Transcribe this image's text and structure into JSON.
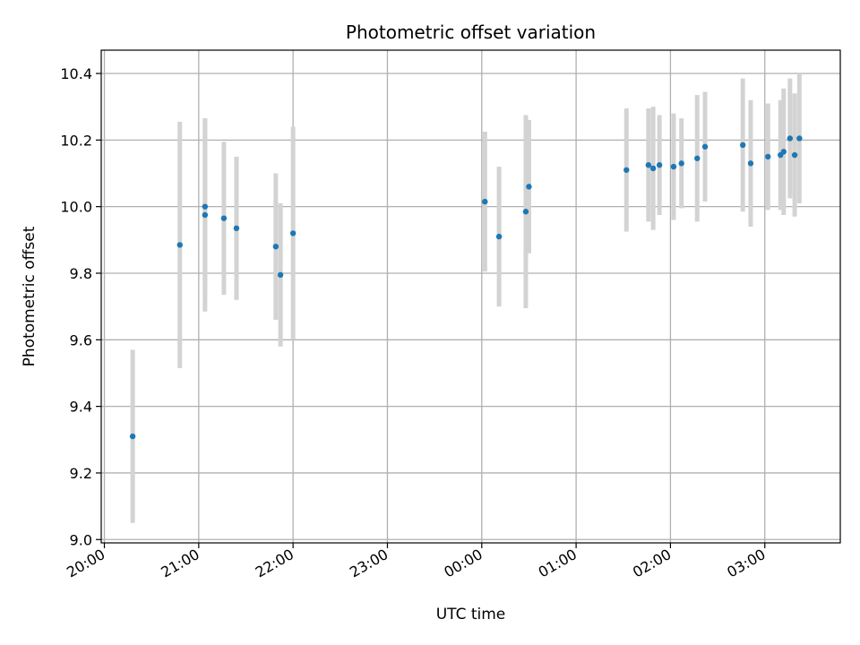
{
  "chart_data": {
    "type": "scatter",
    "title": "Photometric offset variation",
    "xlabel": "UTC time",
    "ylabel": "Photometric offset",
    "xlim": [
      "19:58",
      "27:48"
    ],
    "ylim": [
      8.99,
      10.47
    ],
    "grid": true,
    "x_ticks": [
      "20:00",
      "21:00",
      "22:00",
      "23:00",
      "00:00",
      "01:00",
      "02:00",
      "03:00"
    ],
    "y_ticks": [
      "9.0",
      "9.2",
      "9.4",
      "9.6",
      "9.8",
      "10.0",
      "10.2",
      "10.4"
    ],
    "colors": {
      "point": "#1f77b4",
      "errorbar": "#d3d3d3",
      "grid": "#b0b0b0"
    },
    "points": [
      {
        "time": "20:18",
        "value": 9.31,
        "error": 0.26
      },
      {
        "time": "20:48",
        "value": 9.885,
        "error": 0.37
      },
      {
        "time": "21:04",
        "value": 9.975,
        "error": 0.29
      },
      {
        "time": "21:04",
        "value": 10.0,
        "error": 0.265
      },
      {
        "time": "21:16",
        "value": 9.965,
        "error": 0.23
      },
      {
        "time": "21:24",
        "value": 9.935,
        "error": 0.215
      },
      {
        "time": "21:49",
        "value": 9.88,
        "error": 0.22
      },
      {
        "time": "21:52",
        "value": 9.795,
        "error": 0.215
      },
      {
        "time": "22:00",
        "value": 9.92,
        "error": 0.32
      },
      {
        "time": "00:02",
        "value": 10.015,
        "error": 0.21
      },
      {
        "time": "00:11",
        "value": 9.91,
        "error": 0.21
      },
      {
        "time": "00:28",
        "value": 9.985,
        "error": 0.29
      },
      {
        "time": "00:30",
        "value": 10.06,
        "error": 0.2
      },
      {
        "time": "01:32",
        "value": 10.11,
        "error": 0.185
      },
      {
        "time": "01:46",
        "value": 10.125,
        "error": 0.17
      },
      {
        "time": "01:49",
        "value": 10.115,
        "error": 0.185
      },
      {
        "time": "01:53",
        "value": 10.125,
        "error": 0.15
      },
      {
        "time": "02:02",
        "value": 10.12,
        "error": 0.16
      },
      {
        "time": "02:07",
        "value": 10.13,
        "error": 0.135
      },
      {
        "time": "02:17",
        "value": 10.145,
        "error": 0.19
      },
      {
        "time": "02:22",
        "value": 10.18,
        "error": 0.165
      },
      {
        "time": "02:46",
        "value": 10.185,
        "error": 0.2
      },
      {
        "time": "02:51",
        "value": 10.13,
        "error": 0.19
      },
      {
        "time": "03:02",
        "value": 10.15,
        "error": 0.16
      },
      {
        "time": "03:10",
        "value": 10.155,
        "error": 0.165
      },
      {
        "time": "03:12",
        "value": 10.165,
        "error": 0.19
      },
      {
        "time": "03:16",
        "value": 10.205,
        "error": 0.18
      },
      {
        "time": "03:19",
        "value": 10.155,
        "error": 0.185
      },
      {
        "time": "03:22",
        "value": 10.205,
        "error": 0.195
      }
    ]
  }
}
